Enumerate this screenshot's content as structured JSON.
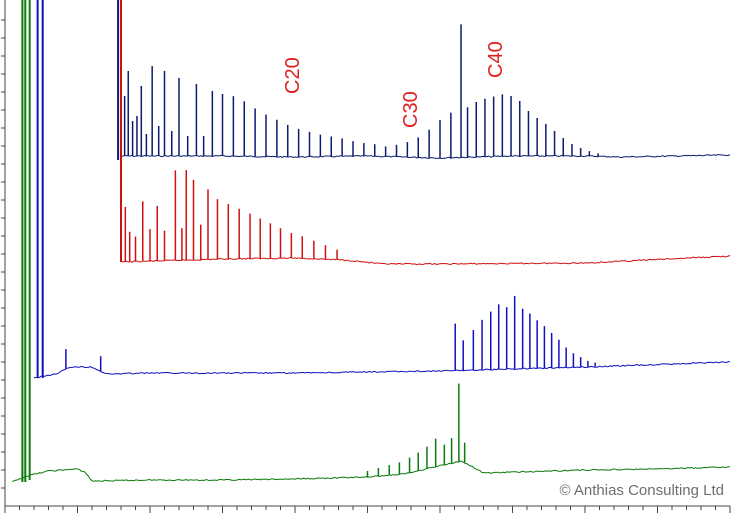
{
  "chart_data": {
    "type": "line",
    "title": "",
    "xlabel": "",
    "ylabel": "",
    "grid": false,
    "x_range": [
      0,
      100
    ],
    "series": [
      {
        "color": "#0b1b6e",
        "offset": 0,
        "baseline": [
          [
            16,
            156
          ],
          [
            30,
            156
          ],
          [
            40,
            157
          ],
          [
            50,
            156
          ],
          [
            60,
            158
          ],
          [
            70,
            156
          ],
          [
            80,
            156
          ],
          [
            85,
            157
          ],
          [
            100,
            155
          ]
        ],
        "peaks": [
          [
            16.5,
            60
          ],
          [
            17,
            85
          ],
          [
            17.6,
            35
          ],
          [
            18.2,
            40
          ],
          [
            18.8,
            70
          ],
          [
            19.5,
            22
          ],
          [
            20.3,
            90
          ],
          [
            21.2,
            30
          ],
          [
            22.0,
            85
          ],
          [
            23.0,
            25
          ],
          [
            24.0,
            78
          ],
          [
            25.2,
            20
          ],
          [
            26.4,
            72
          ],
          [
            27.4,
            20
          ],
          [
            28.6,
            65
          ],
          [
            30.0,
            62
          ],
          [
            31.5,
            60
          ],
          [
            33.0,
            55
          ],
          [
            34.5,
            48
          ],
          [
            36.0,
            42
          ],
          [
            37.5,
            37
          ],
          [
            39.0,
            32
          ],
          [
            40.5,
            28
          ],
          [
            42.0,
            25
          ],
          [
            43.5,
            22
          ],
          [
            45.0,
            20
          ],
          [
            46.5,
            18
          ],
          [
            48.0,
            15
          ],
          [
            49.5,
            13
          ],
          [
            51.0,
            12
          ],
          [
            52.5,
            10
          ],
          [
            54.0,
            12
          ],
          [
            55.5,
            15
          ],
          [
            57.0,
            20
          ],
          [
            58.5,
            28
          ],
          [
            60.0,
            38
          ],
          [
            61.5,
            45
          ],
          [
            62.9,
            133
          ],
          [
            63.8,
            50
          ],
          [
            65.0,
            55
          ],
          [
            66.2,
            58
          ],
          [
            67.4,
            60
          ],
          [
            68.6,
            62
          ],
          [
            69.8,
            60
          ],
          [
            71.0,
            55
          ],
          [
            72.2,
            45
          ],
          [
            73.4,
            38
          ],
          [
            74.6,
            32
          ],
          [
            75.8,
            25
          ],
          [
            77.0,
            18
          ],
          [
            78.2,
            12
          ],
          [
            79.4,
            8
          ],
          [
            80.6,
            5
          ],
          [
            81.8,
            3
          ]
        ]
      },
      {
        "color": "#d01010",
        "offset": 0,
        "baseline": [
          [
            16,
            262
          ],
          [
            30,
            259
          ],
          [
            40,
            258
          ],
          [
            47,
            260
          ],
          [
            52,
            264
          ],
          [
            60,
            264
          ],
          [
            80,
            263
          ],
          [
            100,
            256
          ]
        ],
        "peaks": [
          [
            16.6,
            55
          ],
          [
            17.2,
            30
          ],
          [
            18.0,
            25
          ],
          [
            19.0,
            60
          ],
          [
            20.0,
            32
          ],
          [
            21.0,
            55
          ],
          [
            22.0,
            30
          ],
          [
            23.5,
            90
          ],
          [
            24.4,
            32
          ],
          [
            25.0,
            90
          ],
          [
            26.0,
            80
          ],
          [
            27.0,
            35
          ],
          [
            28.0,
            70
          ],
          [
            29.3,
            60
          ],
          [
            30.8,
            55
          ],
          [
            32.3,
            50
          ],
          [
            33.8,
            45
          ],
          [
            35.2,
            40
          ],
          [
            36.6,
            35
          ],
          [
            38.0,
            30
          ],
          [
            39.5,
            25
          ],
          [
            41.0,
            22
          ],
          [
            42.6,
            18
          ],
          [
            44.2,
            14
          ],
          [
            45.8,
            10
          ]
        ]
      },
      {
        "color": "#1010c0",
        "offset": 0,
        "baseline": [
          [
            4,
            378
          ],
          [
            7,
            374
          ],
          [
            9,
            367
          ],
          [
            12,
            367
          ],
          [
            14,
            374
          ],
          [
            20,
            373
          ],
          [
            40,
            373
          ],
          [
            60,
            371
          ],
          [
            80,
            367
          ],
          [
            100,
            362
          ]
        ],
        "peaks": [
          [
            8.4,
            20
          ],
          [
            13.2,
            15
          ],
          [
            62.1,
            47
          ],
          [
            63.2,
            30
          ],
          [
            64.6,
            40
          ],
          [
            65.8,
            50
          ],
          [
            67.0,
            58
          ],
          [
            68.1,
            65
          ],
          [
            69.2,
            62
          ],
          [
            70.3,
            73
          ],
          [
            71.4,
            60
          ],
          [
            72.4,
            55
          ],
          [
            73.4,
            48
          ],
          [
            74.4,
            42
          ],
          [
            75.4,
            35
          ],
          [
            76.4,
            28
          ],
          [
            77.4,
            20
          ],
          [
            78.4,
            14
          ],
          [
            79.4,
            10
          ],
          [
            80.4,
            6
          ],
          [
            81.4,
            4
          ]
        ]
      },
      {
        "color": "#0a7a0a",
        "offset": 0,
        "baseline": [
          [
            1,
            482
          ],
          [
            3,
            476
          ],
          [
            6,
            471
          ],
          [
            10,
            469
          ],
          [
            11,
            472
          ],
          [
            12,
            481
          ],
          [
            20,
            480
          ],
          [
            30,
            480
          ],
          [
            40,
            479
          ],
          [
            50,
            477
          ],
          [
            55,
            474
          ],
          [
            58,
            469
          ],
          [
            61,
            464
          ],
          [
            63,
            461
          ],
          [
            66,
            473
          ],
          [
            80,
            470
          ],
          [
            90,
            469
          ],
          [
            100,
            467
          ]
        ],
        "peaks": [
          [
            50.0,
            6
          ],
          [
            51.5,
            8
          ],
          [
            53.0,
            10
          ],
          [
            54.4,
            12
          ],
          [
            55.8,
            15
          ],
          [
            57.0,
            18
          ],
          [
            58.2,
            22
          ],
          [
            59.4,
            28
          ],
          [
            60.6,
            20
          ],
          [
            61.6,
            25
          ],
          [
            62.6,
            78
          ],
          [
            63.4,
            20
          ]
        ]
      }
    ],
    "annotations": [
      "C20",
      "C30",
      "C40"
    ],
    "watermark": "© Anthias Consulting Ltd"
  }
}
